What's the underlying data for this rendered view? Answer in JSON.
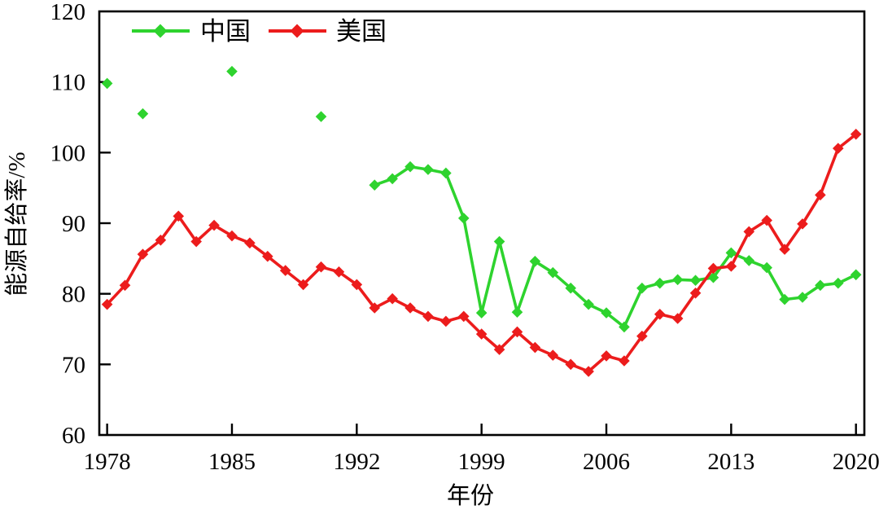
{
  "chart_data": {
    "type": "line",
    "title": "",
    "xlabel": "年份",
    "ylabel": "能源自给率/%",
    "ylim": [
      60,
      120
    ],
    "xlim": [
      1977.56,
      2020.47
    ],
    "y_ticks": [
      60,
      70,
      80,
      90,
      100,
      110,
      120
    ],
    "x_ticks": [
      1978,
      1985,
      1992,
      1999,
      2006,
      2013,
      2020
    ],
    "grid": "off",
    "legend_position": "top-left-inside",
    "series": [
      {
        "name": "中国",
        "color": "#2ed32e",
        "marker": "diamond",
        "isolated_points": [
          [
            1978,
            109.8
          ],
          [
            1980,
            105.5
          ],
          [
            1985,
            111.5
          ],
          [
            1990,
            105.1
          ]
        ],
        "line_points": [
          [
            1993,
            95.4
          ],
          [
            1994,
            96.3
          ],
          [
            1995,
            98.0
          ],
          [
            1996,
            97.6
          ],
          [
            1997,
            97.1
          ],
          [
            1998,
            90.7
          ],
          [
            1999,
            77.3
          ],
          [
            2000,
            87.4
          ],
          [
            2001,
            77.4
          ],
          [
            2002,
            84.6
          ],
          [
            2003,
            83.0
          ],
          [
            2004,
            80.8
          ],
          [
            2005,
            78.5
          ],
          [
            2006,
            77.3
          ],
          [
            2007,
            75.3
          ],
          [
            2008,
            80.8
          ],
          [
            2009,
            81.5
          ],
          [
            2010,
            82.0
          ],
          [
            2011,
            81.9
          ],
          [
            2012,
            82.3
          ],
          [
            2013,
            85.8
          ],
          [
            2014,
            84.7
          ],
          [
            2015,
            83.7
          ],
          [
            2016,
            79.2
          ],
          [
            2017,
            79.5
          ],
          [
            2018,
            81.2
          ],
          [
            2019,
            81.5
          ],
          [
            2020,
            82.7
          ]
        ]
      },
      {
        "name": "美国",
        "color": "#ec1c1c",
        "marker": "diamond",
        "isolated_points": [],
        "line_points": [
          [
            1978,
            78.5
          ],
          [
            1979,
            81.2
          ],
          [
            1980,
            85.6
          ],
          [
            1981,
            87.6
          ],
          [
            1982,
            91.0
          ],
          [
            1983,
            87.4
          ],
          [
            1984,
            89.7
          ],
          [
            1985,
            88.2
          ],
          [
            1986,
            87.2
          ],
          [
            1987,
            85.3
          ],
          [
            1988,
            83.3
          ],
          [
            1989,
            81.3
          ],
          [
            1990,
            83.8
          ],
          [
            1991,
            83.1
          ],
          [
            1992,
            81.3
          ],
          [
            1993,
            78.0
          ],
          [
            1994,
            79.3
          ],
          [
            1995,
            78.0
          ],
          [
            1996,
            76.8
          ],
          [
            1997,
            76.1
          ],
          [
            1998,
            76.8
          ],
          [
            1999,
            74.3
          ],
          [
            2000,
            72.1
          ],
          [
            2001,
            74.6
          ],
          [
            2002,
            72.4
          ],
          [
            2003,
            71.3
          ],
          [
            2004,
            70.0
          ],
          [
            2005,
            69.0
          ],
          [
            2006,
            71.2
          ],
          [
            2007,
            70.5
          ],
          [
            2008,
            74.0
          ],
          [
            2009,
            77.1
          ],
          [
            2010,
            76.5
          ],
          [
            2011,
            80.1
          ],
          [
            2012,
            83.6
          ],
          [
            2013,
            83.9
          ],
          [
            2014,
            88.8
          ],
          [
            2015,
            90.4
          ],
          [
            2016,
            86.3
          ],
          [
            2017,
            89.9
          ],
          [
            2018,
            94.0
          ],
          [
            2019,
            100.6
          ],
          [
            2020,
            102.6
          ]
        ]
      }
    ]
  },
  "layout_colors": {
    "axis": "#000000",
    "background": "#ffffff"
  }
}
